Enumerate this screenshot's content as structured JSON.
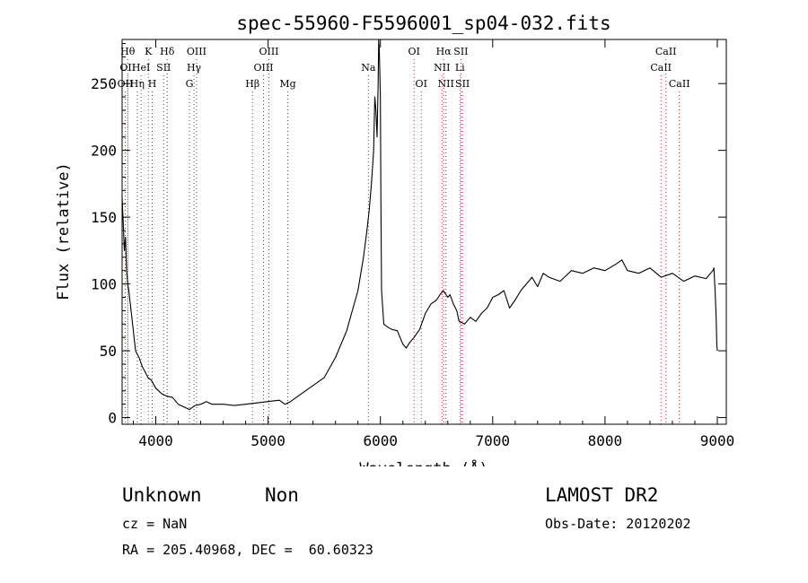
{
  "chart_data": {
    "type": "line",
    "title": "spec-55960-F5596001_sp04-032.fits",
    "xlabel": "Wavelength (Å)",
    "ylabel": "Flux (relative)",
    "xlim": [
      3700,
      9080
    ],
    "ylim": [
      -5,
      283
    ],
    "xticks": [
      4000,
      5000,
      6000,
      7000,
      8000,
      9000
    ],
    "yticks": [
      0,
      50,
      100,
      150,
      200,
      250
    ],
    "grid": false,
    "series": [
      {
        "x": [
          3700,
          3710,
          3720,
          3730,
          3740,
          3750,
          3760,
          3780,
          3800,
          3820,
          3850,
          3880,
          3900,
          3930,
          3960,
          4000,
          4050,
          4100,
          4150,
          4200,
          4250,
          4300,
          4350,
          4400,
          4450,
          4500,
          4600,
          4700,
          4800,
          4900,
          5000,
          5100,
          5150,
          5200,
          5300,
          5400,
          5500,
          5600,
          5700,
          5750,
          5800,
          5850,
          5880,
          5900,
          5920,
          5940,
          5950,
          5960,
          5970,
          5980,
          5985,
          5990,
          6000,
          6005,
          6010,
          6030,
          6060,
          6100,
          6150,
          6200,
          6230,
          6260,
          6300,
          6350,
          6400,
          6450,
          6500,
          6530,
          6560,
          6600,
          6620,
          6650,
          6680,
          6700,
          6750,
          6800,
          6850,
          6900,
          6950,
          7000,
          7050,
          7100,
          7150,
          7200,
          7250,
          7300,
          7350,
          7400,
          7450,
          7500,
          7600,
          7700,
          7800,
          7900,
          8000,
          8100,
          8150,
          8200,
          8300,
          8400,
          8500,
          8600,
          8700,
          8800,
          8900,
          8960,
          8970,
          8980,
          8990,
          8995,
          9000
        ],
        "y": [
          165,
          145,
          125,
          135,
          110,
          100,
          95,
          80,
          65,
          50,
          45,
          38,
          35,
          30,
          28,
          22,
          18,
          16,
          15,
          10,
          8,
          6,
          9,
          10,
          12,
          10,
          10,
          9,
          10,
          11,
          12,
          13,
          10,
          12,
          18,
          24,
          30,
          45,
          65,
          80,
          95,
          120,
          140,
          155,
          175,
          200,
          240,
          230,
          210,
          250,
          290,
          275,
          240,
          160,
          95,
          70,
          68,
          66,
          65,
          55,
          52,
          56,
          60,
          66,
          78,
          85,
          88,
          92,
          95,
          90,
          92,
          85,
          80,
          72,
          70,
          75,
          72,
          78,
          82,
          90,
          92,
          95,
          82,
          88,
          95,
          100,
          105,
          98,
          108,
          105,
          102,
          110,
          108,
          112,
          110,
          115,
          118,
          110,
          108,
          112,
          105,
          108,
          102,
          106,
          104,
          110,
          112,
          95,
          75,
          55,
          50
        ]
      }
    ],
    "lines": [
      {
        "wl": 3728,
        "color": "#d02020",
        "row": 3,
        "label": "OII"
      },
      {
        "wl": 3750,
        "color": "#505050",
        "row": 1,
        "label": "Hθ"
      },
      {
        "wl": 3750,
        "color": "#505050",
        "row": 2,
        "label": "OII"
      },
      {
        "wl": 3835,
        "color": "#505050",
        "row": 3,
        "label": "Hη"
      },
      {
        "wl": 3869,
        "color": "#505050",
        "row": 2,
        "label": "HeI"
      },
      {
        "wl": 3934,
        "color": "#505050",
        "row": 1,
        "label": "K"
      },
      {
        "wl": 3968,
        "color": "#505050",
        "row": 3,
        "label": "H"
      },
      {
        "wl": 4070,
        "color": "#505050",
        "row": 2,
        "label": "SII"
      },
      {
        "wl": 4102,
        "color": "#505050",
        "row": 1,
        "label": "Hδ"
      },
      {
        "wl": 4300,
        "color": "#505050",
        "row": 3,
        "label": "G"
      },
      {
        "wl": 4340,
        "color": "#505050",
        "row": 2,
        "label": "Hγ"
      },
      {
        "wl": 4363,
        "color": "#505050",
        "row": 1,
        "label": "OIII"
      },
      {
        "wl": 4861,
        "color": "#505050",
        "row": 3,
        "label": "Hβ"
      },
      {
        "wl": 4959,
        "color": "#d02020",
        "row": 2,
        "label": "OIII"
      },
      {
        "wl": 5007,
        "color": "#d02020",
        "row": 1,
        "label": "OIII"
      },
      {
        "wl": 5175,
        "color": "#505050",
        "row": 3,
        "label": "Mg"
      },
      {
        "wl": 5893,
        "color": "#505050",
        "row": 2,
        "label": "Na"
      },
      {
        "wl": 6300,
        "color": "#d02020",
        "row": 1,
        "label": "OI"
      },
      {
        "wl": 6364,
        "color": "#505050",
        "row": 3,
        "label": "OI"
      },
      {
        "wl": 6548,
        "color": "#d02020",
        "row": 2,
        "label": "NII"
      },
      {
        "wl": 6563,
        "color": "#d02020",
        "row": 1,
        "label": "Hα"
      },
      {
        "wl": 6583,
        "color": "#505050",
        "row": 3,
        "label": "NII"
      },
      {
        "wl": 6708,
        "color": "#505050",
        "row": 2,
        "label": "Li"
      },
      {
        "wl": 6717,
        "color": "#d02020",
        "row": 1,
        "label": "SII"
      },
      {
        "wl": 6731,
        "color": "#d02020",
        "row": 3,
        "label": "SII"
      },
      {
        "wl": 8498,
        "color": "#d02020",
        "row": 2,
        "label": "CaII"
      },
      {
        "wl": 8542,
        "color": "#d02020",
        "row": 1,
        "label": "CaII"
      },
      {
        "wl": 8662,
        "color": "#d02020",
        "row": 3,
        "label": "CaII"
      }
    ]
  },
  "footer": {
    "class_label": "Unknown",
    "subclass_label": "Non",
    "survey": "LAMOST DR2",
    "cz": "cz = NaN",
    "obs_date": "Obs-Date: 20120202",
    "coords": "RA = 205.40968, DEC =  60.60323"
  }
}
